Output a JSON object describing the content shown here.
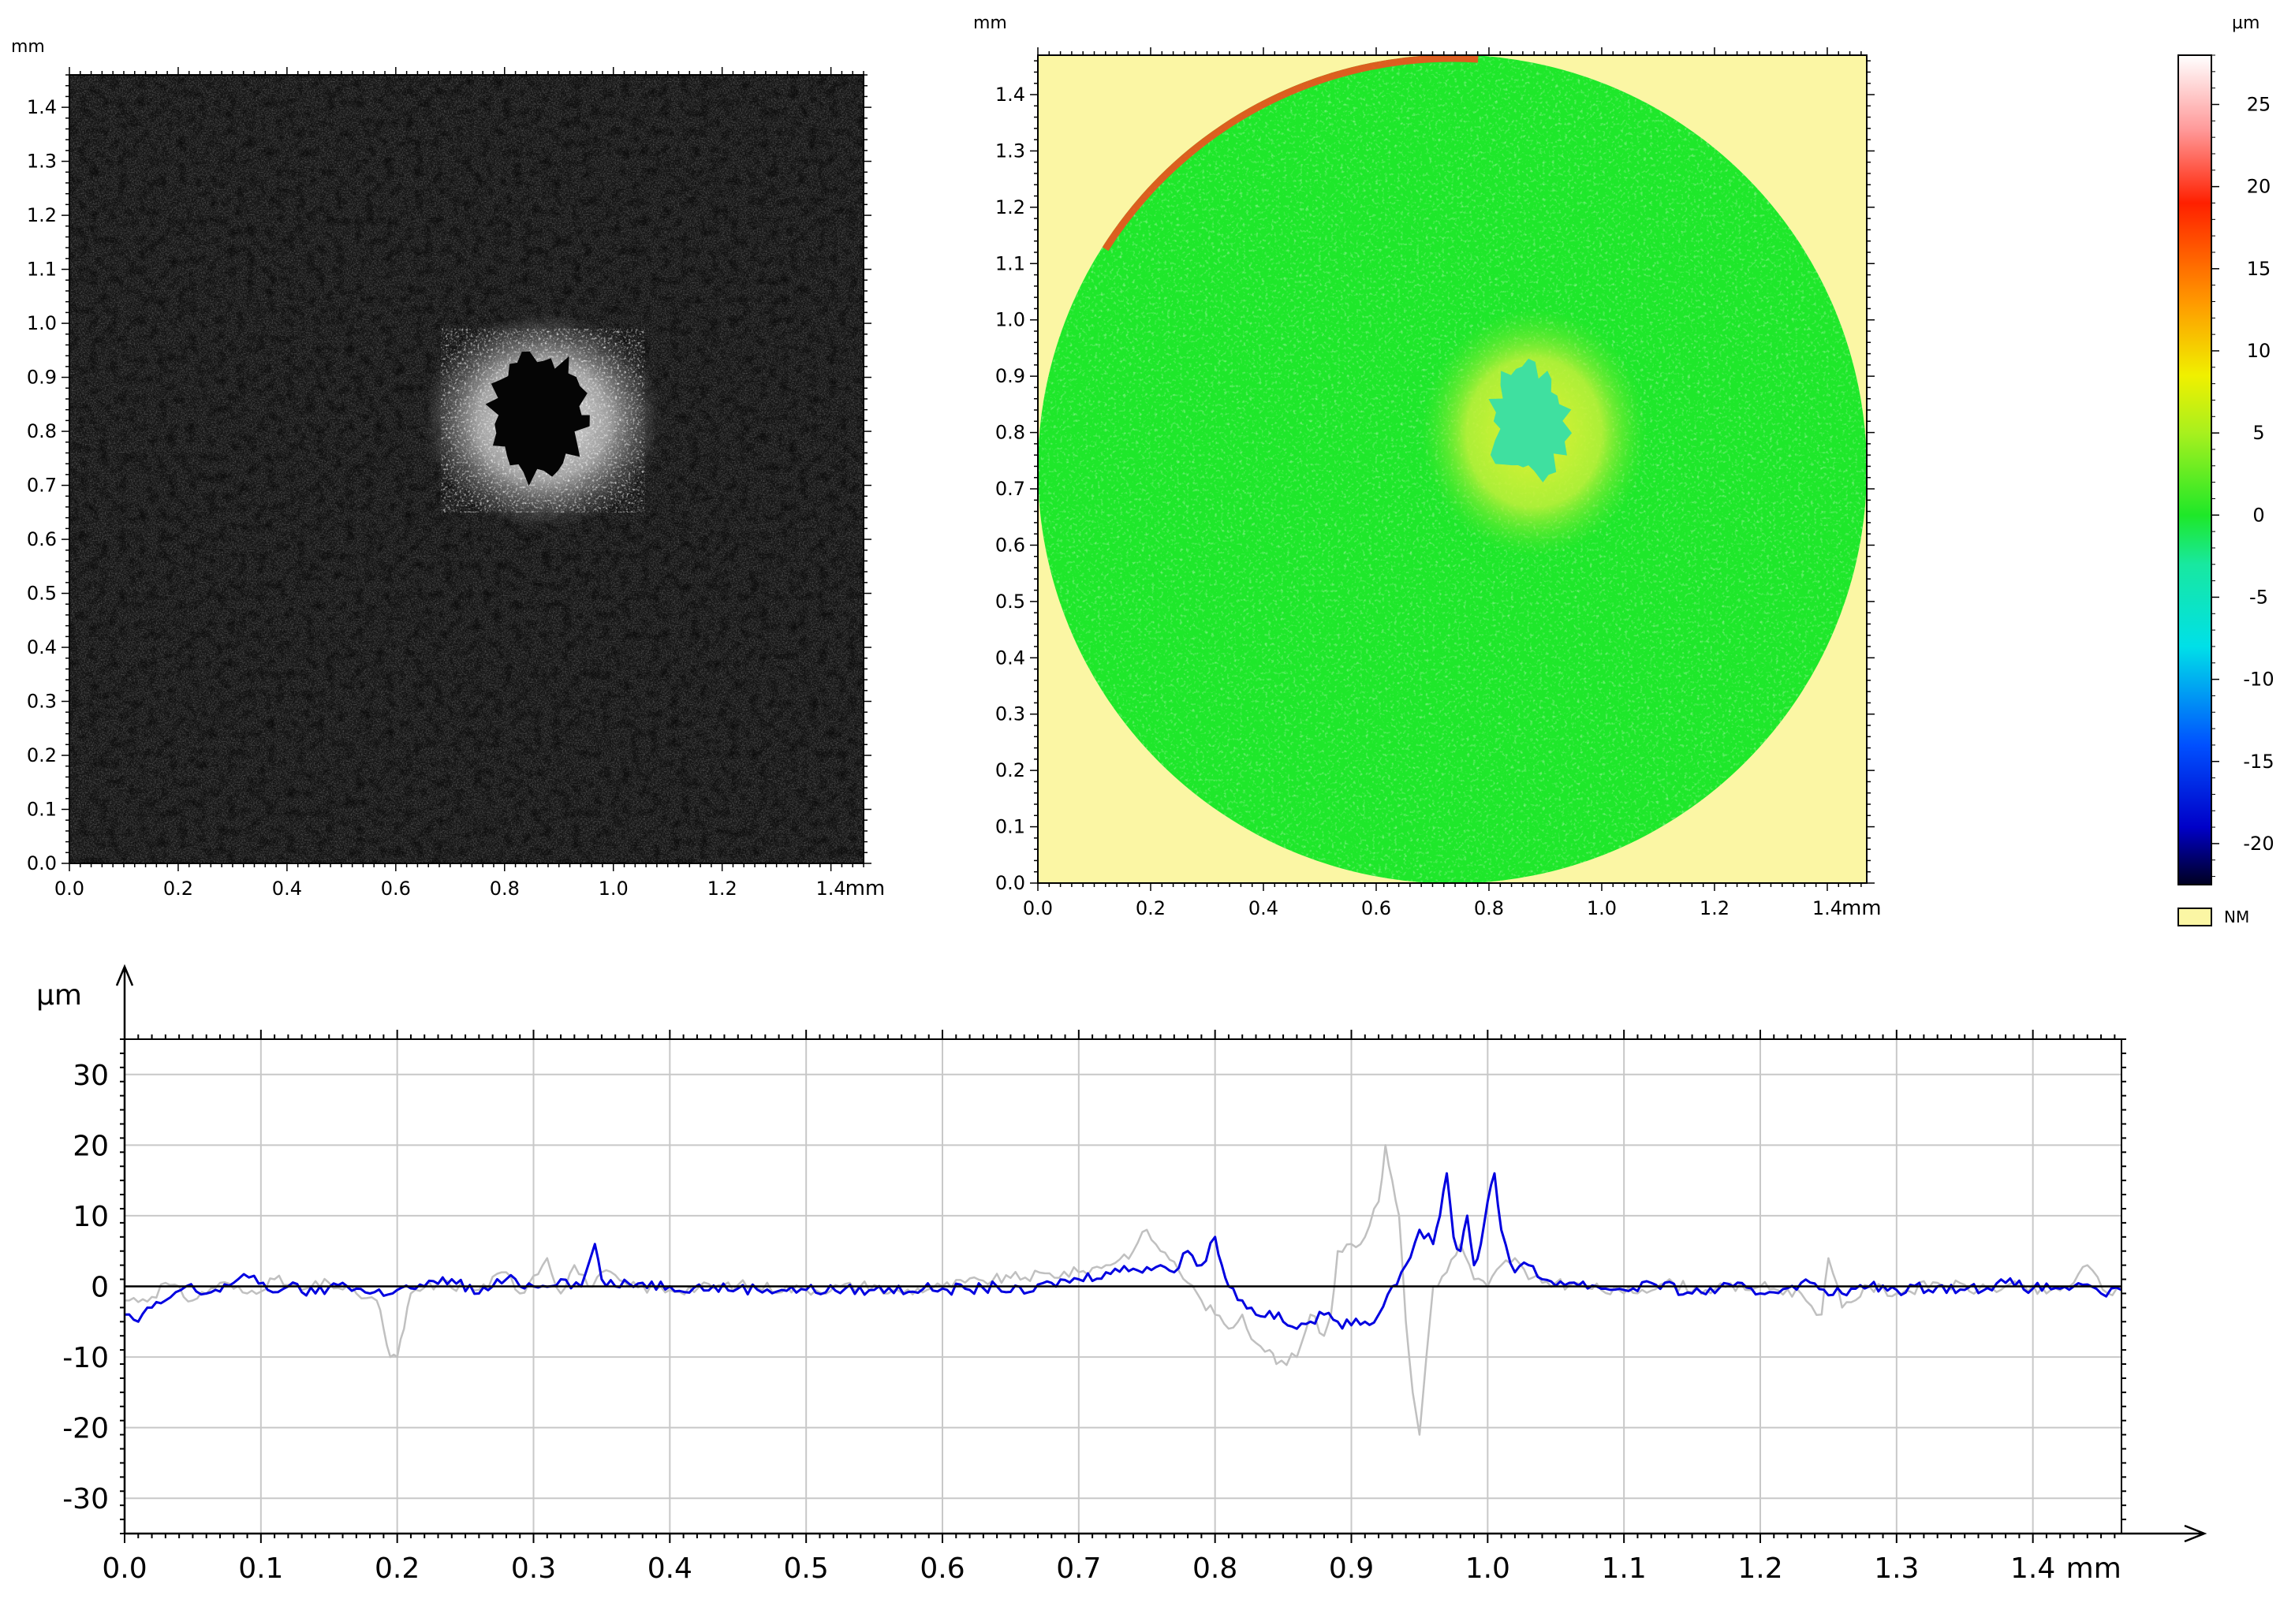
{
  "chart_data": [
    {
      "type": "heatmap",
      "panel": "intensity-image",
      "x_unit": "mm",
      "y_unit": "mm",
      "xlim": [
        0.0,
        1.46
      ],
      "ylim": [
        0.0,
        1.46
      ],
      "x_ticks": [
        0.0,
        0.2,
        0.4,
        0.6,
        0.8,
        1.0,
        1.2,
        1.4
      ],
      "x_tick_labels": [
        "0.0",
        "0.2",
        "0.4",
        "0.6",
        "0.8",
        "1.0",
        "1.2",
        "1.4"
      ],
      "y_ticks": [
        0.0,
        0.1,
        0.2,
        0.3,
        0.4,
        0.5,
        0.6,
        0.7,
        0.8,
        0.9,
        1.0,
        1.1,
        1.2,
        1.3,
        1.4
      ],
      "y_tick_labels": [
        "0.0",
        "0.1",
        "0.2",
        "0.3",
        "0.4",
        "0.5",
        "0.6",
        "0.7",
        "0.8",
        "0.9",
        "1.0",
        "1.1",
        "1.2",
        "1.3",
        "1.4"
      ],
      "colormap": "grayscale",
      "features": {
        "bright_ring": {
          "x": 0.87,
          "y": 0.82,
          "rx": 0.22,
          "ry": 0.2
        },
        "dark_crater": {
          "x": 0.86,
          "y": 0.83,
          "rx": 0.085,
          "ry": 0.115
        }
      }
    },
    {
      "type": "heatmap",
      "panel": "height-map",
      "x_unit": "mm",
      "y_unit": "mm",
      "xlim": [
        0.0,
        1.47
      ],
      "ylim": [
        0.0,
        1.47
      ],
      "x_ticks": [
        0.0,
        0.2,
        0.4,
        0.6,
        0.8,
        1.0,
        1.2,
        1.4
      ],
      "x_tick_labels": [
        "0.0",
        "0.2",
        "0.4",
        "0.6",
        "0.8",
        "1.0",
        "1.2",
        "1.4"
      ],
      "y_ticks": [
        0.0,
        0.1,
        0.2,
        0.3,
        0.4,
        0.5,
        0.6,
        0.7,
        0.8,
        0.9,
        1.0,
        1.1,
        1.2,
        1.3,
        1.4
      ],
      "y_tick_labels": [
        "0.0",
        "0.1",
        "0.2",
        "0.3",
        "0.4",
        "0.5",
        "0.6",
        "0.7",
        "0.8",
        "0.9",
        "1.0",
        "1.1",
        "1.2",
        "1.3",
        "1.4"
      ],
      "background_color": "#fbf6a4",
      "measured_region": {
        "shape": "circle",
        "cx": 0.735,
        "cy": 0.735,
        "r": 0.735
      },
      "base_color": "#1ee82a",
      "features": {
        "raised_zone": {
          "x": 0.88,
          "y": 0.8,
          "rx": 0.2,
          "ry": 0.22,
          "color": "#d2f23a"
        },
        "depression": {
          "x": 0.87,
          "y": 0.82,
          "rx": 0.065,
          "ry": 0.1,
          "color": "#3fe0a0"
        },
        "rim_edge": {
          "color": "#f0501e"
        }
      }
    },
    {
      "type": "colorbar",
      "unit": "µm",
      "range": [
        -22.5,
        28
      ],
      "tick_values": [
        25,
        20,
        15,
        10,
        5,
        0,
        -5,
        -10,
        -15,
        -20
      ],
      "tick_labels": [
        "25",
        "20",
        "15",
        "10",
        "5",
        "0",
        "-5",
        "-10",
        "-15",
        "-20"
      ],
      "color_stops": [
        {
          "value": -22.5,
          "color": "#000020"
        },
        {
          "value": -19,
          "color": "#0000c8"
        },
        {
          "value": -14,
          "color": "#0050ff"
        },
        {
          "value": -8,
          "color": "#00e0e8"
        },
        {
          "value": -3,
          "color": "#18e8a0"
        },
        {
          "value": 0,
          "color": "#1ee828"
        },
        {
          "value": 5,
          "color": "#a8f01e"
        },
        {
          "value": 8.5,
          "color": "#f0f000"
        },
        {
          "value": 13,
          "color": "#ff9800"
        },
        {
          "value": 19,
          "color": "#ff2000"
        },
        {
          "value": 23.5,
          "color": "#ff9a9a"
        },
        {
          "value": 28,
          "color": "#ffffff"
        }
      ],
      "nm_label": "NM",
      "nm_color": "#fbf6a4"
    },
    {
      "type": "line",
      "panel": "profile",
      "x_unit": "mm",
      "y_unit": "µm",
      "xlim": [
        0.0,
        1.465
      ],
      "ylim": [
        -35,
        35
      ],
      "x_ticks": [
        0.0,
        0.1,
        0.2,
        0.3,
        0.4,
        0.5,
        0.6,
        0.7,
        0.8,
        0.9,
        1.0,
        1.1,
        1.2,
        1.3,
        1.4
      ],
      "x_tick_labels": [
        "0.0",
        "0.1",
        "0.2",
        "0.3",
        "0.4",
        "0.5",
        "0.6",
        "0.7",
        "0.8",
        "0.9",
        "1.0",
        "1.1",
        "1.2",
        "1.3",
        "1.4"
      ],
      "y_ticks": [
        30,
        20,
        10,
        0,
        -10,
        -20,
        -30
      ],
      "y_tick_labels": [
        "30",
        "20",
        "10",
        "0",
        "-10",
        "-20",
        "-30"
      ],
      "grid": true,
      "series": [
        {
          "color": "#c0c0c0",
          "points": [
            [
              0.0,
              -2
            ],
            [
              0.02,
              -1.5
            ],
            [
              0.03,
              0.5
            ],
            [
              0.05,
              -2
            ],
            [
              0.07,
              0.5
            ],
            [
              0.09,
              -1
            ],
            [
              0.11,
              1
            ],
            [
              0.13,
              -0.5
            ],
            [
              0.15,
              0.5
            ],
            [
              0.17,
              -1
            ],
            [
              0.185,
              -2
            ],
            [
              0.19,
              -6
            ],
            [
              0.195,
              -10
            ],
            [
              0.2,
              -10
            ],
            [
              0.205,
              -6
            ],
            [
              0.21,
              -1
            ],
            [
              0.23,
              0.5
            ],
            [
              0.26,
              -0.5
            ],
            [
              0.28,
              2
            ],
            [
              0.29,
              -1
            ],
            [
              0.3,
              1.5
            ],
            [
              0.31,
              4
            ],
            [
              0.32,
              -1
            ],
            [
              0.33,
              3
            ],
            [
              0.34,
              0
            ],
            [
              0.35,
              2
            ],
            [
              0.37,
              0
            ],
            [
              0.4,
              -0.5
            ],
            [
              0.45,
              0.2
            ],
            [
              0.5,
              -0.5
            ],
            [
              0.55,
              0.2
            ],
            [
              0.56,
              -1
            ],
            [
              0.6,
              0
            ],
            [
              0.63,
              0.8
            ],
            [
              0.65,
              1.2
            ],
            [
              0.7,
              2
            ],
            [
              0.72,
              3
            ],
            [
              0.74,
              5
            ],
            [
              0.75,
              8
            ],
            [
              0.76,
              5
            ],
            [
              0.77,
              3.5
            ],
            [
              0.78,
              0.5
            ],
            [
              0.79,
              -2
            ],
            [
              0.8,
              -4
            ],
            [
              0.81,
              -6
            ],
            [
              0.82,
              -4
            ],
            [
              0.83,
              -8
            ],
            [
              0.84,
              -9
            ],
            [
              0.845,
              -11
            ],
            [
              0.86,
              -10
            ],
            [
              0.87,
              -4
            ],
            [
              0.88,
              -7
            ],
            [
              0.885,
              -4
            ],
            [
              0.89,
              5
            ],
            [
              0.9,
              6
            ],
            [
              0.91,
              7
            ],
            [
              0.92,
              12
            ],
            [
              0.925,
              20
            ],
            [
              0.93,
              15
            ],
            [
              0.935,
              10
            ],
            [
              0.94,
              -5
            ],
            [
              0.945,
              -15
            ],
            [
              0.95,
              -21
            ],
            [
              0.955,
              -10
            ],
            [
              0.96,
              0
            ],
            [
              0.97,
              2
            ],
            [
              0.98,
              6
            ],
            [
              0.99,
              1
            ],
            [
              1.0,
              0
            ],
            [
              1.01,
              3
            ],
            [
              1.02,
              4
            ],
            [
              1.03,
              1
            ],
            [
              1.05,
              0.5
            ],
            [
              1.07,
              0
            ],
            [
              1.1,
              -1
            ],
            [
              1.13,
              0.5
            ],
            [
              1.16,
              -0.5
            ],
            [
              1.2,
              0
            ],
            [
              1.23,
              -1
            ],
            [
              1.245,
              -4
            ],
            [
              1.25,
              4
            ],
            [
              1.26,
              -3
            ],
            [
              1.28,
              0
            ],
            [
              1.3,
              -1
            ],
            [
              1.33,
              0.5
            ],
            [
              1.36,
              -0.5
            ],
            [
              1.39,
              0
            ],
            [
              1.41,
              -1
            ],
            [
              1.43,
              0.5
            ],
            [
              1.44,
              3
            ],
            [
              1.455,
              -1
            ],
            [
              1.465,
              0
            ]
          ]
        },
        {
          "color": "#0000e0",
          "points": [
            [
              0.0,
              -4
            ],
            [
              0.01,
              -5
            ],
            [
              0.02,
              -3
            ],
            [
              0.03,
              -2
            ],
            [
              0.045,
              0
            ],
            [
              0.06,
              -1
            ],
            [
              0.08,
              0.5
            ],
            [
              0.095,
              1.5
            ],
            [
              0.105,
              -0.5
            ],
            [
              0.12,
              0
            ],
            [
              0.14,
              -1
            ],
            [
              0.16,
              0.5
            ],
            [
              0.18,
              -1
            ],
            [
              0.2,
              -0.5
            ],
            [
              0.22,
              0
            ],
            [
              0.24,
              1
            ],
            [
              0.26,
              -1
            ],
            [
              0.28,
              1
            ],
            [
              0.3,
              0
            ],
            [
              0.32,
              1
            ],
            [
              0.335,
              0
            ],
            [
              0.345,
              6
            ],
            [
              0.35,
              1
            ],
            [
              0.36,
              0
            ],
            [
              0.38,
              0.5
            ],
            [
              0.4,
              0
            ],
            [
              0.45,
              -0.3
            ],
            [
              0.5,
              -0.5
            ],
            [
              0.55,
              -0.5
            ],
            [
              0.6,
              -0.3
            ],
            [
              0.62,
              -0.5
            ],
            [
              0.64,
              0
            ],
            [
              0.66,
              -1
            ],
            [
              0.68,
              0.5
            ],
            [
              0.7,
              1
            ],
            [
              0.72,
              2
            ],
            [
              0.74,
              2.5
            ],
            [
              0.76,
              3
            ],
            [
              0.77,
              2
            ],
            [
              0.78,
              5
            ],
            [
              0.79,
              3
            ],
            [
              0.8,
              7
            ],
            [
              0.805,
              3
            ],
            [
              0.81,
              0
            ],
            [
              0.82,
              -2
            ],
            [
              0.83,
              -4
            ],
            [
              0.84,
              -3.5
            ],
            [
              0.85,
              -5
            ],
            [
              0.86,
              -6
            ],
            [
              0.87,
              -5
            ],
            [
              0.88,
              -4
            ],
            [
              0.89,
              -5
            ],
            [
              0.9,
              -5.5
            ],
            [
              0.91,
              -5
            ],
            [
              0.92,
              -4
            ],
            [
              0.93,
              0
            ],
            [
              0.94,
              3
            ],
            [
              0.95,
              8
            ],
            [
              0.96,
              6
            ],
            [
              0.965,
              10
            ],
            [
              0.97,
              16
            ],
            [
              0.975,
              7
            ],
            [
              0.98,
              5
            ],
            [
              0.985,
              10
            ],
            [
              0.99,
              3
            ],
            [
              0.995,
              6
            ],
            [
              1.0,
              12
            ],
            [
              1.005,
              16
            ],
            [
              1.01,
              8
            ],
            [
              1.02,
              2
            ],
            [
              1.03,
              3
            ],
            [
              1.04,
              1
            ],
            [
              1.06,
              0.5
            ],
            [
              1.08,
              0
            ],
            [
              1.1,
              -0.5
            ],
            [
              1.12,
              0.5
            ],
            [
              1.15,
              -1
            ],
            [
              1.18,
              0
            ],
            [
              1.2,
              -1
            ],
            [
              1.23,
              0.5
            ],
            [
              1.26,
              -1
            ],
            [
              1.28,
              0
            ],
            [
              1.3,
              -0.5
            ],
            [
              1.33,
              0
            ],
            [
              1.35,
              -0.5
            ],
            [
              1.38,
              0.5
            ],
            [
              1.4,
              -0.3
            ],
            [
              1.43,
              0
            ],
            [
              1.45,
              -1
            ],
            [
              1.465,
              -0.5
            ]
          ]
        },
        {
          "color": "#000000",
          "points": [
            [
              0.0,
              0
            ],
            [
              1.465,
              0
            ]
          ]
        }
      ]
    }
  ],
  "labels": {
    "p1_y_unit": "mm",
    "p1_x_unit": "mm",
    "p2_y_unit": "mm",
    "p2_x_unit": "mm",
    "cb_unit": "µm",
    "p3_y_unit": "µm",
    "p3_x_unit": "mm"
  }
}
